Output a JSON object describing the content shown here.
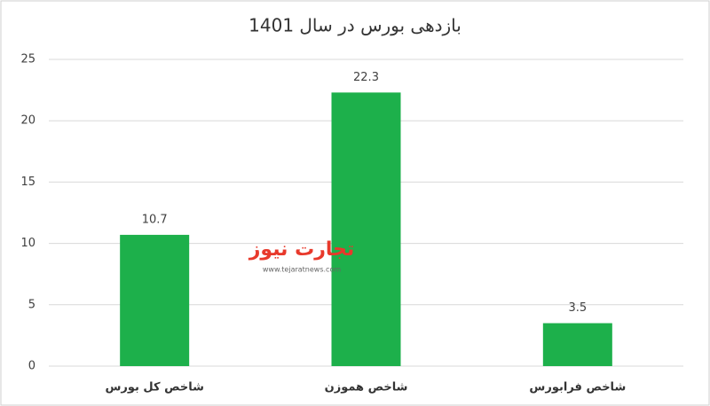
{
  "chart_data": {
    "type": "bar",
    "title": "بازدهی بورس در سال 1401",
    "categories": [
      "شاخص کل بورس",
      "شاخص هموزن",
      "شاخص فرابورس"
    ],
    "values": [
      10.7,
      22.3,
      3.5
    ],
    "color": "#1db04b",
    "ylim": [
      0,
      25
    ],
    "yticks": [
      0,
      5,
      10,
      15,
      20,
      25
    ],
    "grid": true
  },
  "logo": {
    "name": "تجارت نیوز",
    "url": "www.tejaratnews.com"
  }
}
